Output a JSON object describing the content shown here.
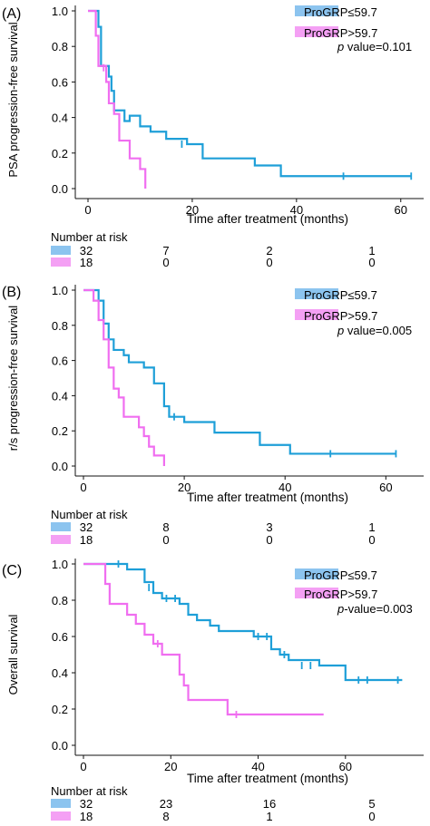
{
  "colors": {
    "low": "#1e9fd8",
    "high": "#f06ef0",
    "low_legend": "#8cc4ef",
    "high_legend": "#f4a0f4",
    "axis": "#111111"
  },
  "chart_data": [
    {
      "panel_label": "(A)",
      "type": "line",
      "xlabel": "Time after treatment (months)",
      "ylabel": "PSA progression-free survival",
      "xlim": [
        0,
        63
      ],
      "ylim": [
        0,
        1.0
      ],
      "x_ticks": [
        "0",
        "20",
        "40",
        "60"
      ],
      "y_ticks": [
        "0.0",
        "0.2",
        "0.4",
        "0.6",
        "0.8",
        "1.0"
      ],
      "legend": [
        "ProGRP≤59.7",
        "ProGRP>59.7"
      ],
      "p_prefix": "p",
      "p_value": " value=0.101",
      "risk_title": "Number at risk",
      "risk_low": [
        "32",
        "7",
        "2",
        "1"
      ],
      "risk_high": [
        "18",
        "0",
        "0",
        "0"
      ],
      "series": [
        {
          "name": "ProGRP≤59.7",
          "steps": [
            [
              0,
              1.0
            ],
            [
              2,
              0.91
            ],
            [
              2.5,
              0.69
            ],
            [
              4,
              0.63
            ],
            [
              4.5,
              0.55
            ],
            [
              5,
              0.44
            ],
            [
              7,
              0.38
            ],
            [
              8,
              0.41
            ],
            [
              10,
              0.35
            ],
            [
              12,
              0.32
            ],
            [
              15,
              0.28
            ],
            [
              19,
              0.25
            ],
            [
              22,
              0.17
            ],
            [
              32,
              0.13
            ],
            [
              37,
              0.07
            ],
            [
              62,
              0.07
            ]
          ],
          "censors": [
            [
              18,
              0.25
            ],
            [
              49,
              0.07
            ],
            [
              62,
              0.07
            ]
          ]
        },
        {
          "name": "ProGRP>59.7",
          "steps": [
            [
              0,
              1.0
            ],
            [
              1.5,
              0.86
            ],
            [
              2,
              0.69
            ],
            [
              3.5,
              0.6
            ],
            [
              4,
              0.48
            ],
            [
              5,
              0.42
            ],
            [
              6,
              0.27
            ],
            [
              8,
              0.17
            ],
            [
              10,
              0.11
            ],
            [
              11,
              0.0
            ]
          ],
          "censors": [
            [
              3,
              0.68
            ]
          ]
        }
      ]
    },
    {
      "panel_label": "(B)",
      "type": "line",
      "xlabel": "Time after treatment (months)",
      "ylabel": "r/s progression-free survival",
      "xlim": [
        0,
        63
      ],
      "ylim": [
        0,
        1.0
      ],
      "x_ticks": [
        "0",
        "20",
        "40",
        "60"
      ],
      "y_ticks": [
        "0.0",
        "0.2",
        "0.4",
        "0.6",
        "0.8",
        "1.0"
      ],
      "legend": [
        "ProGRP≤59.7",
        "ProGRP>59.7"
      ],
      "p_prefix": "p",
      "p_value": " value=0.005",
      "risk_title": "Number at risk",
      "risk_low": [
        "32",
        "8",
        "3",
        "1"
      ],
      "risk_high": [
        "18",
        "0",
        "0",
        "0"
      ],
      "series": [
        {
          "name": "ProGRP≤59.7",
          "steps": [
            [
              0,
              1.0
            ],
            [
              3,
              0.94
            ],
            [
              4,
              0.81
            ],
            [
              5,
              0.72
            ],
            [
              6,
              0.66
            ],
            [
              8,
              0.63
            ],
            [
              9,
              0.59
            ],
            [
              12,
              0.56
            ],
            [
              14,
              0.47
            ],
            [
              16,
              0.34
            ],
            [
              17,
              0.28
            ],
            [
              20,
              0.25
            ],
            [
              26,
              0.19
            ],
            [
              35,
              0.12
            ],
            [
              37,
              0.12
            ],
            [
              41,
              0.07
            ],
            [
              62,
              0.07
            ]
          ],
          "censors": [
            [
              18,
              0.28
            ],
            [
              49,
              0.07
            ],
            [
              62,
              0.07
            ]
          ]
        },
        {
          "name": "ProGRP>59.7",
          "steps": [
            [
              0,
              1.0
            ],
            [
              2,
              0.94
            ],
            [
              3,
              0.83
            ],
            [
              4,
              0.72
            ],
            [
              5,
              0.56
            ],
            [
              6,
              0.44
            ],
            [
              7,
              0.39
            ],
            [
              8,
              0.28
            ],
            [
              11,
              0.22
            ],
            [
              12,
              0.17
            ],
            [
              13,
              0.11
            ],
            [
              14,
              0.06
            ],
            [
              16,
              0.0
            ]
          ],
          "censors": []
        }
      ]
    },
    {
      "panel_label": "(C)",
      "type": "line",
      "xlabel": "Time after treatment (months)",
      "ylabel": "Overall survival",
      "xlim": [
        0,
        75
      ],
      "ylim": [
        0,
        1.0
      ],
      "x_ticks": [
        "0",
        "20",
        "40",
        "60"
      ],
      "y_ticks": [
        "0.0",
        "0.2",
        "0.4",
        "0.6",
        "0.8",
        "1.0"
      ],
      "legend": [
        "ProGRP≤59.7",
        "ProGRP>59.7"
      ],
      "p_prefix": "p",
      "p_value": "-value=0.003",
      "risk_title": "Number at risk",
      "risk_low": [
        "32",
        "23",
        "16",
        "5"
      ],
      "risk_high": [
        "18",
        "8",
        "1",
        "0"
      ],
      "series": [
        {
          "name": "ProGRP≤59.7",
          "steps": [
            [
              0,
              1.0
            ],
            [
              10,
              0.97
            ],
            [
              14,
              0.9
            ],
            [
              16,
              0.84
            ],
            [
              18,
              0.81
            ],
            [
              22,
              0.78
            ],
            [
              24,
              0.72
            ],
            [
              26,
              0.69
            ],
            [
              29,
              0.66
            ],
            [
              31,
              0.63
            ],
            [
              39,
              0.6
            ],
            [
              43,
              0.53
            ],
            [
              45,
              0.5
            ],
            [
              47,
              0.47
            ],
            [
              54,
              0.44
            ],
            [
              60,
              0.36
            ],
            [
              73,
              0.36
            ]
          ],
          "censors": [
            [
              8,
              1.0
            ],
            [
              15,
              0.87
            ],
            [
              19,
              0.81
            ],
            [
              21,
              0.81
            ],
            [
              40,
              0.6
            ],
            [
              42,
              0.6
            ],
            [
              46,
              0.5
            ],
            [
              50,
              0.44
            ],
            [
              52,
              0.44
            ],
            [
              63,
              0.36
            ],
            [
              65,
              0.36
            ],
            [
              72,
              0.36
            ]
          ]
        },
        {
          "name": "ProGRP>59.7",
          "steps": [
            [
              0,
              1.0
            ],
            [
              5,
              0.89
            ],
            [
              6,
              0.78
            ],
            [
              10,
              0.72
            ],
            [
              12,
              0.67
            ],
            [
              14,
              0.61
            ],
            [
              16,
              0.56
            ],
            [
              18,
              0.5
            ],
            [
              22,
              0.39
            ],
            [
              23,
              0.33
            ],
            [
              24,
              0.25
            ],
            [
              33,
              0.17
            ],
            [
              55,
              0.17
            ]
          ],
          "censors": [
            [
              17,
              0.56
            ],
            [
              35,
              0.17
            ]
          ]
        }
      ]
    }
  ]
}
